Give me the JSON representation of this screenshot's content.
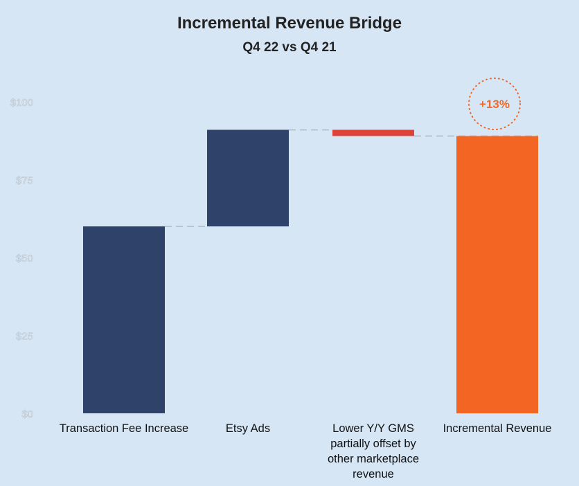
{
  "chart_data": {
    "type": "waterfall",
    "title": "Incremental Revenue Bridge",
    "subtitle": "Q4 22 vs Q4 21",
    "categories": [
      [
        "Transaction Fee Increase"
      ],
      [
        "Etsy Ads"
      ],
      [
        "Lower Y/Y GMS",
        "partially offset by",
        "other marketplace",
        "revenue"
      ],
      [
        "Incremental Revenue"
      ]
    ],
    "values": [
      60,
      31,
      -2,
      89
    ],
    "kinds": [
      "increase",
      "increase",
      "decrease",
      "total"
    ],
    "colors": {
      "increase": "#2f4269",
      "decrease": "#de4339",
      "total": "#f26522",
      "connector": "#b9c4cf"
    },
    "ylim": [
      0,
      100
    ],
    "yticks": [
      0,
      25,
      50,
      75,
      100
    ],
    "ytick_labels": [
      "$0",
      "$25",
      "$50",
      "$75",
      "$100"
    ],
    "annotation": {
      "text": "+13%",
      "category_index": 3,
      "style": "dotted-circle"
    },
    "grid": false,
    "legend": "none"
  }
}
